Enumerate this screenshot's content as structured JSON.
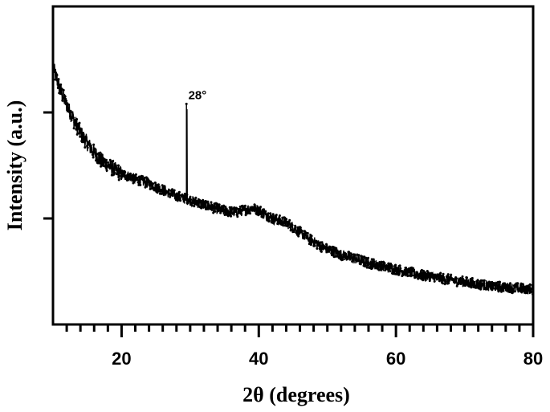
{
  "chart_data": {
    "type": "line",
    "title": "",
    "xlabel": "2θ  (degrees)",
    "ylabel": "Intensity (a.u.)",
    "xlim": [
      10,
      80
    ],
    "ylim": [
      0,
      3
    ],
    "x_major_ticks": [
      20,
      40,
      60,
      80
    ],
    "x_tick_labels": [
      "20",
      "40",
      "60",
      "80"
    ],
    "x_minor_step": 2,
    "y_ticks": [
      0,
      1,
      2,
      3
    ],
    "y_tick_labels": [
      "",
      "",
      "",
      ""
    ],
    "grid": false,
    "legend": "none",
    "marker": "dot",
    "line_color": "#000000",
    "series": [
      {
        "x": [
          10,
          11,
          12,
          13,
          14,
          15,
          16,
          17,
          18,
          19,
          20,
          21,
          22,
          23,
          24,
          25,
          26,
          27,
          28,
          29,
          29.5,
          30,
          31,
          32,
          33,
          34,
          35,
          36,
          37,
          38,
          39,
          40,
          41,
          42,
          43,
          44,
          45,
          46,
          47,
          48,
          49,
          50,
          52,
          54,
          56,
          58,
          60,
          62,
          64,
          66,
          68,
          70,
          72,
          74,
          76,
          78,
          80
        ],
        "y": [
          2.43,
          2.22,
          2.07,
          1.93,
          1.81,
          1.71,
          1.62,
          1.55,
          1.5,
          1.46,
          1.42,
          1.4,
          1.37,
          1.35,
          1.33,
          1.3,
          1.27,
          1.24,
          1.21,
          1.19,
          1.18,
          1.17,
          1.15,
          1.13,
          1.11,
          1.09,
          1.07,
          1.06,
          1.06,
          1.08,
          1.1,
          1.08,
          1.04,
          1.0,
          0.98,
          0.96,
          0.92,
          0.87,
          0.82,
          0.78,
          0.74,
          0.71,
          0.66,
          0.62,
          0.58,
          0.55,
          0.52,
          0.49,
          0.46,
          0.44,
          0.42,
          0.4,
          0.38,
          0.36,
          0.35,
          0.34,
          0.33
        ]
      }
    ],
    "noise_amplitude": 0.05,
    "peaks": [
      {
        "x": 29.5,
        "y": 2.08,
        "label": "28°"
      }
    ]
  }
}
